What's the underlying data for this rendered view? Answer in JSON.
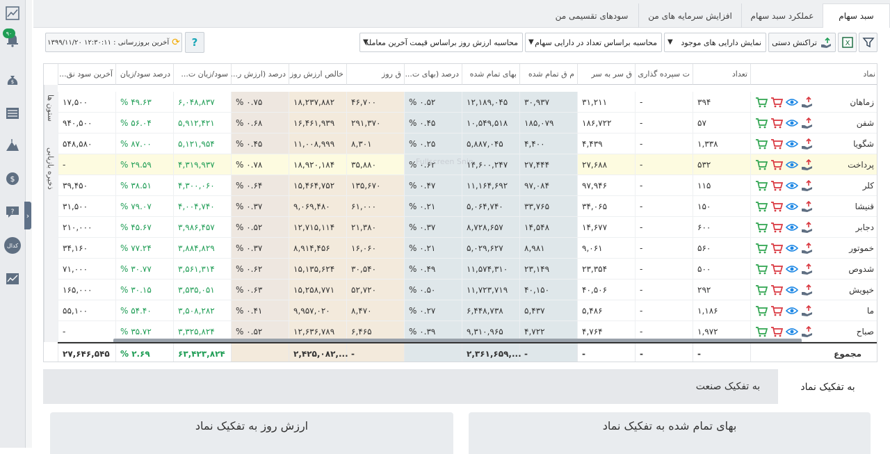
{
  "tabs": [
    {
      "label": "سبد سهام",
      "active": true
    },
    {
      "label": "عملکرد سبد سهام",
      "active": false
    },
    {
      "label": "افزایش سرمایه های من",
      "active": false
    },
    {
      "label": "سودهای تقسیمی من",
      "active": false
    }
  ],
  "toolbar": {
    "manual_transaction": "تراکنش دستی",
    "show_assets": "نمایش دارایی های موجود",
    "calc_by_count": "محاسبه براساس تعداد در دارایی سهام",
    "calc_by_price": "محاسبه ارزش روز براساس قیمت آخرین معامله",
    "last_update": "آخرین بروزرسانی : ۱۲:۳۰:۱۱ ۱۳۹۹/۱۱/۲۰",
    "help": "?"
  },
  "side_labels": {
    "columns": "ستون ها",
    "saved": "ذخیره بازیابی"
  },
  "columns": [
    "نماد",
    "تعداد",
    "ت سپرده گذاری",
    "ق سر به سر",
    "م ق تمام شده",
    "بهای تمام شده",
    "درصد (بهای ت...",
    "ق روز",
    "خالص ارزش روز",
    "درصد (ارزش ر...",
    "سود/زیان ت...",
    "درصد سود/زیان",
    "آخرین سود نق..."
  ],
  "rows": [
    {
      "name": "زماهان",
      "count": "۳۹۴",
      "dep": "-",
      "be": "۳۱,۲۱۱",
      "avg": "۳۰,۹۳۷",
      "cost": "۱۲,۱۸۹,۰۴۵",
      "costpct": "% ۰.۵۲",
      "price": "۴۶,۷۰۰",
      "value": "۱۸,۲۳۷,۸۸۲",
      "valpct": "% ۰.۷۵",
      "pl": "۶,۰۴۸,۸۳۷",
      "plpct": "% ۴۹.۶۳",
      "div": "۱۷,۵۰۰"
    },
    {
      "name": "شفن",
      "count": "۵۷",
      "dep": "-",
      "be": "۱۸۶,۷۲۲",
      "avg": "۱۸۵,۰۷۹",
      "cost": "۱۰,۵۴۹,۵۱۸",
      "costpct": "% ۰.۴۵",
      "price": "۲۹۱,۳۷۰",
      "value": "۱۶,۴۶۱,۹۳۹",
      "valpct": "% ۰.۶۸",
      "pl": "۵,۹۱۲,۴۲۱",
      "plpct": "% ۵۶.۰۴",
      "div": "۹۴۰,۵۰۰"
    },
    {
      "name": "شگویا",
      "count": "۱,۳۳۸",
      "dep": "-",
      "be": "۴,۴۳۹",
      "avg": "۴,۴۰۰",
      "cost": "۵,۸۸۷,۰۴۵",
      "costpct": "% ۰.۲۵",
      "price": "۸,۳۰۱",
      "value": "۱۱,۰۰۸,۹۹۹",
      "valpct": "% ۰.۴۵",
      "pl": "۵,۱۲۱,۹۵۴",
      "plpct": "% ۸۷.۰۰",
      "div": "۵۴۸,۵۸۰"
    },
    {
      "name": "پرداخت",
      "count": "۵۳۲",
      "dep": "-",
      "be": "۲۷,۶۸۸",
      "avg": "۲۷,۴۴۴",
      "cost": "۱۴,۶۰۰,۲۴۷",
      "costpct": "% ۰.۶۲",
      "price": "۳۵,۸۸۰",
      "value": "۱۸,۹۲۰,۱۸۴",
      "valpct": "% ۰.۷۸",
      "pl": "۴,۳۱۹,۹۳۷",
      "plpct": "% ۲۹.۵۹",
      "div": "-",
      "highlight": true
    },
    {
      "name": "کلر",
      "count": "۱۱۵",
      "dep": "-",
      "be": "۹۷,۹۴۶",
      "avg": "۹۷,۰۸۴",
      "cost": "۱۱,۱۶۴,۶۹۲",
      "costpct": "% ۰.۴۷",
      "price": "۱۳۵,۶۷۰",
      "value": "۱۵,۴۶۴,۷۵۲",
      "valpct": "% ۰.۶۴",
      "pl": "۴,۳۰۰,۰۶۰",
      "plpct": "% ۳۸.۵۱",
      "div": "۳۹,۴۵۰"
    },
    {
      "name": "قنیشا",
      "count": "۱۵۰",
      "dep": "-",
      "be": "۳۴,۰۶۵",
      "avg": "۳۳,۷۶۵",
      "cost": "۵,۰۶۴,۷۴۰",
      "costpct": "% ۰.۲۱",
      "price": "۶۱,۰۰۰",
      "value": "۹,۰۶۹,۴۸۰",
      "valpct": "% ۰.۳۷",
      "pl": "۴,۰۰۴,۷۴۰",
      "plpct": "% ۷۹.۰۷",
      "div": "۳۱,۵۰۰"
    },
    {
      "name": "دجابر",
      "count": "۶۰۰",
      "dep": "-",
      "be": "۱۴,۶۷۷",
      "avg": "۱۴,۵۴۸",
      "cost": "۸,۷۲۸,۶۵۷",
      "costpct": "% ۰.۳۷",
      "price": "۲۱,۳۸۰",
      "value": "۱۲,۷۱۵,۱۱۴",
      "valpct": "% ۰.۵۲",
      "pl": "۳,۹۸۶,۴۵۷",
      "plpct": "% ۴۵.۶۷",
      "div": "۲۱۰,۰۰۰"
    },
    {
      "name": "خموتور",
      "count": "۵۶۰",
      "dep": "-",
      "be": "۹,۰۶۱",
      "avg": "۸,۹۸۱",
      "cost": "۵,۰۲۹,۶۲۷",
      "costpct": "% ۰.۲۱",
      "price": "۱۶,۰۶۰",
      "value": "۸,۹۱۴,۴۵۶",
      "valpct": "% ۰.۳۷",
      "pl": "۳,۸۸۴,۸۲۹",
      "plpct": "% ۷۷.۲۴",
      "div": "۳۴,۱۶۰"
    },
    {
      "name": "شدوص",
      "count": "۵۰۰",
      "dep": "-",
      "be": "۲۳,۳۵۴",
      "avg": "۲۳,۱۴۹",
      "cost": "۱۱,۵۷۴,۳۱۰",
      "costpct": "% ۰.۴۹",
      "price": "۳۰,۵۴۰",
      "value": "۱۵,۱۳۵,۶۲۴",
      "valpct": "% ۰.۶۲",
      "pl": "۳,۵۶۱,۳۱۴",
      "plpct": "% ۳۰.۷۷",
      "div": "۷۱,۰۰۰"
    },
    {
      "name": "خپویش",
      "count": "۲۹۲",
      "dep": "-",
      "be": "۴۰,۵۰۶",
      "avg": "۴۰,۱۵۰",
      "cost": "۱۱,۷۲۳,۷۱۹",
      "costpct": "% ۰.۵۰",
      "price": "۵۲,۷۲۰",
      "value": "۱۵,۲۵۸,۷۷۱",
      "valpct": "% ۰.۶۳",
      "pl": "۳,۵۳۵,۰۵۱",
      "plpct": "% ۳۰.۱۵",
      "div": "۱۶۵,۰۰۰"
    },
    {
      "name": "ما",
      "count": "۱,۱۸۶",
      "dep": "-",
      "be": "۵,۴۸۶",
      "avg": "۵,۴۳۷",
      "cost": "۶,۴۴۸,۷۳۸",
      "costpct": "% ۰.۲۷",
      "price": "۸,۴۷۰",
      "value": "۹,۹۵۷,۰۲۰",
      "valpct": "% ۰.۴۱",
      "pl": "۳,۵۰۸,۲۸۲",
      "plpct": "% ۵۴.۴۰",
      "div": "۵۵,۱۰۰"
    },
    {
      "name": "صباح",
      "count": "۱,۹۷۲",
      "dep": "-",
      "be": "۴,۷۶۴",
      "avg": "۴,۷۲۲",
      "cost": "۹,۳۱۰,۹۶۵",
      "costpct": "% ۰.۳۹",
      "price": "۶,۴۶۵",
      "value": "۱۲,۶۳۶,۷۸۹",
      "valpct": "% ۰.۵۲",
      "pl": "۳,۳۲۵,۸۲۴",
      "plpct": "% ۳۵.۷۲",
      "div": "-"
    }
  ],
  "totals": {
    "label": "مجموع",
    "count": "-",
    "dep": "-",
    "be": "-",
    "avg": "-",
    "cost": "۲,۳۶۱,۶۵۹,...",
    "costpct": "",
    "price": "-",
    "value": "۲,۴۲۵,۰۸۲,...",
    "valpct": "",
    "pl": "۶۳,۴۲۳,۸۲۴",
    "plpct": "% ۲.۶۹",
    "div": "۲۷,۶۴۶,۵۴۵"
  },
  "watermark": "Fullscreen Snip",
  "bottom": {
    "tab_symbol": "به تفکیک نماد",
    "tab_industry": "به تفکیک صنعت",
    "panel_left": "ارزش روز به تفکیک نماد",
    "panel_right": "بهای تمام شده به تفکیک نماد"
  },
  "rail": {
    "badge": "۹۰",
    "kodal": "کدال"
  },
  "colors": {
    "positive": "#1f9d55",
    "cart_buy": "#2ea44f",
    "cart_sell": "#d9363e",
    "eye": "#1e88e5"
  }
}
